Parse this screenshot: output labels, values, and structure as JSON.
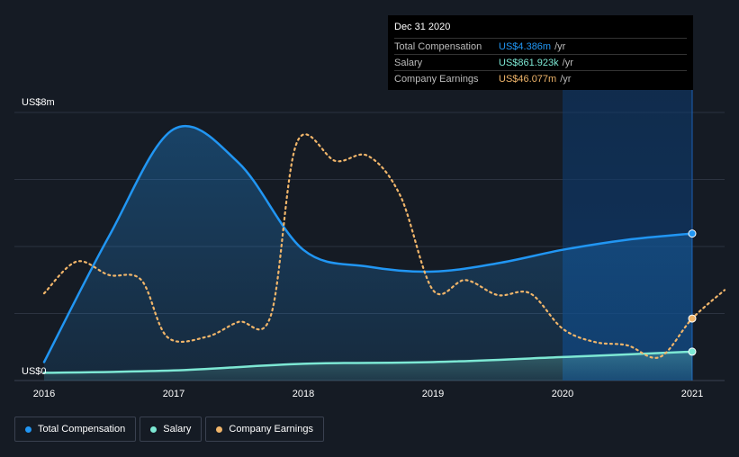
{
  "chart_data": {
    "type": "line",
    "y_axis": {
      "top_label": "US$8m",
      "bottom_label": "US$0",
      "ylim": [
        0,
        8
      ]
    },
    "x_ticks": [
      "2016",
      "2017",
      "2018",
      "2019",
      "2020",
      "2021"
    ],
    "xlim": [
      2016,
      2021.25
    ],
    "grid": true,
    "legend_position": "bottom-left",
    "series": [
      {
        "name": "Total Compensation",
        "color": "#2196f3",
        "unit": "US$m",
        "points": [
          [
            2016.0,
            0.55
          ],
          [
            2016.5,
            4.3
          ],
          [
            2017.0,
            7.5
          ],
          [
            2017.5,
            6.5
          ],
          [
            2018.0,
            3.9
          ],
          [
            2018.5,
            3.4
          ],
          [
            2019.0,
            3.25
          ],
          [
            2019.5,
            3.5
          ],
          [
            2020.0,
            3.9
          ],
          [
            2020.5,
            4.2
          ],
          [
            2021.0,
            4.386
          ]
        ]
      },
      {
        "name": "Salary",
        "color": "#7de8d4",
        "unit": "US$m",
        "points": [
          [
            2016.0,
            0.23
          ],
          [
            2017.0,
            0.3
          ],
          [
            2018.0,
            0.5
          ],
          [
            2019.0,
            0.55
          ],
          [
            2020.0,
            0.7
          ],
          [
            2021.0,
            0.862
          ]
        ]
      },
      {
        "name": "Company Earnings",
        "color": "#f0b56a",
        "unit": "scaled",
        "points": [
          [
            2016.0,
            2.6
          ],
          [
            2016.25,
            3.55
          ],
          [
            2016.5,
            3.15
          ],
          [
            2016.75,
            3.0
          ],
          [
            2016.95,
            1.3
          ],
          [
            2017.25,
            1.3
          ],
          [
            2017.5,
            1.75
          ],
          [
            2017.75,
            1.95
          ],
          [
            2017.95,
            7.1
          ],
          [
            2018.25,
            6.55
          ],
          [
            2018.5,
            6.7
          ],
          [
            2018.75,
            5.5
          ],
          [
            2019.0,
            2.7
          ],
          [
            2019.25,
            3.0
          ],
          [
            2019.5,
            2.55
          ],
          [
            2019.75,
            2.6
          ],
          [
            2020.0,
            1.55
          ],
          [
            2020.25,
            1.15
          ],
          [
            2020.5,
            1.05
          ],
          [
            2020.75,
            0.7
          ],
          [
            2021.0,
            1.85
          ],
          [
            2021.25,
            2.7
          ]
        ]
      }
    ],
    "highlight_x": 2021.0
  },
  "tooltip": {
    "date": "Dec 31 2020",
    "rows": [
      {
        "label": "Total Compensation",
        "value": "US$4.386m",
        "unit": "/yr",
        "color": "#2196f3"
      },
      {
        "label": "Salary",
        "value": "US$861.923k",
        "unit": "/yr",
        "color": "#7de8d4"
      },
      {
        "label": "Company Earnings",
        "value": "US$46.077m",
        "unit": "/yr",
        "color": "#f0b56a"
      }
    ]
  },
  "legend": [
    {
      "label": "Total Compensation",
      "color": "#2196f3"
    },
    {
      "label": "Salary",
      "color": "#7de8d4"
    },
    {
      "label": "Company Earnings",
      "color": "#f0b56a"
    }
  ]
}
